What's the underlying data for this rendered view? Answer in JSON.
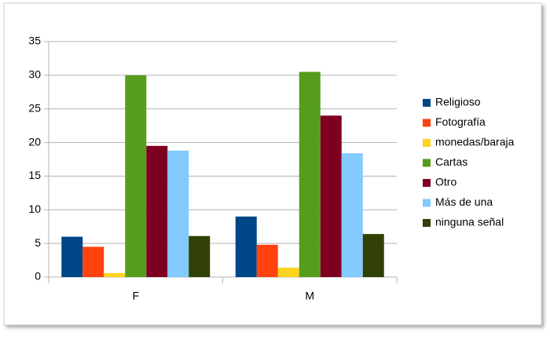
{
  "chart_data": {
    "type": "bar",
    "categories": [
      "F",
      "M"
    ],
    "series": [
      {
        "name": "Religioso",
        "color": "#004586",
        "values": [
          6,
          9
        ]
      },
      {
        "name": "Fotografía",
        "color": "#ff420e",
        "values": [
          4.5,
          4.8
        ]
      },
      {
        "name": "monedas/baraja",
        "color": "#ffd320",
        "values": [
          0.6,
          1.4
        ]
      },
      {
        "name": "Cartas",
        "color": "#579d1c",
        "values": [
          30,
          30.5
        ]
      },
      {
        "name": "Otro",
        "color": "#7e0021",
        "values": [
          19.5,
          24
        ]
      },
      {
        "name": "Más de una",
        "color": "#83caff",
        "values": [
          18.8,
          18.4
        ]
      },
      {
        "name": "ninguna señal",
        "color": "#314004",
        "values": [
          6.1,
          6.4
        ]
      }
    ],
    "ylim": [
      0,
      35
    ],
    "yticks": [
      0,
      5,
      10,
      15,
      20,
      25,
      30,
      35
    ],
    "grid": true,
    "legend": "right"
  }
}
